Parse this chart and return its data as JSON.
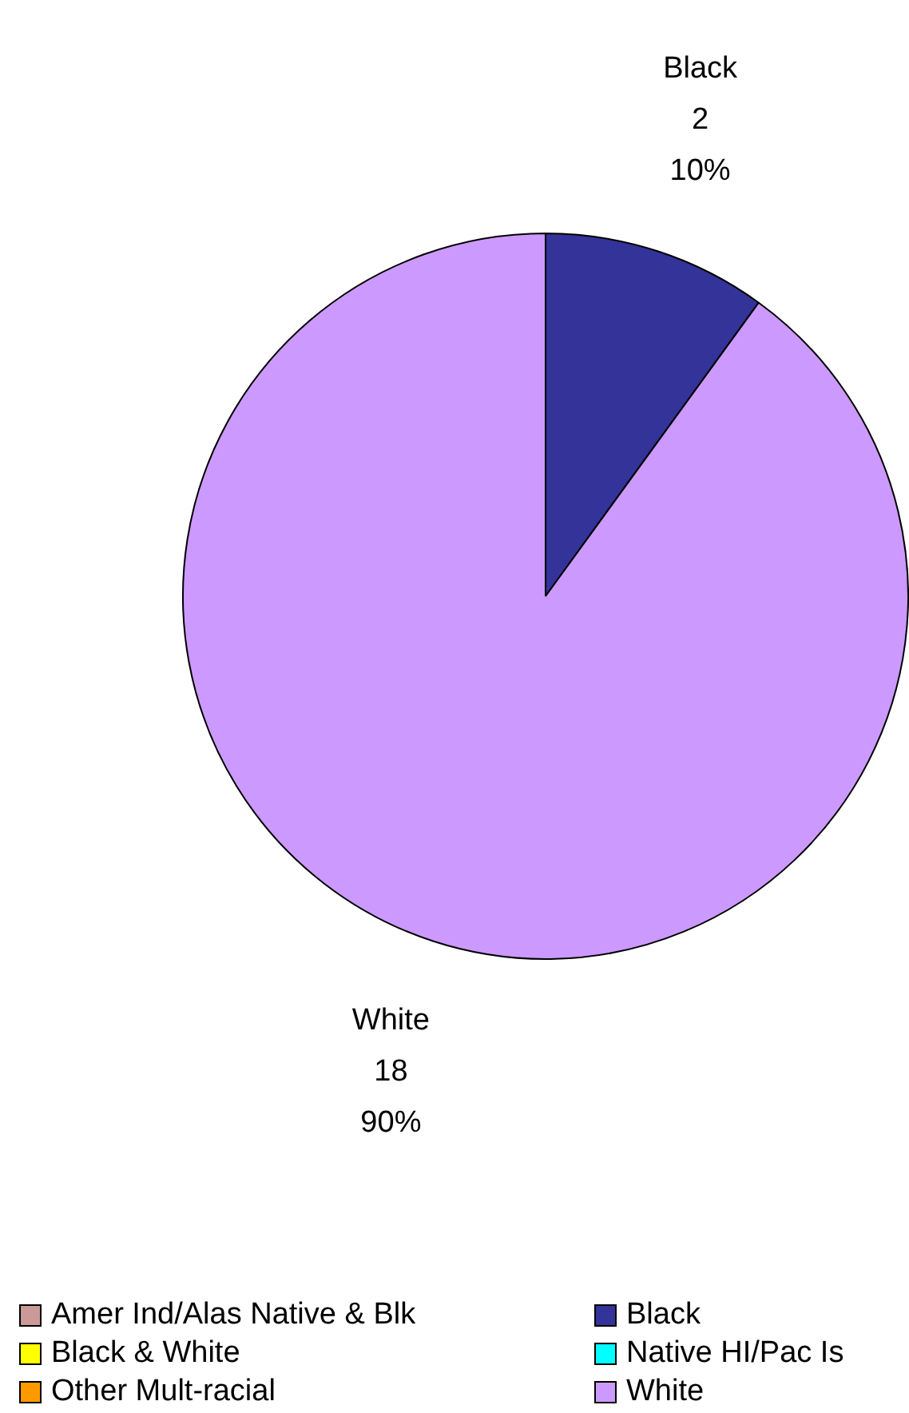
{
  "chart_data": {
    "type": "pie",
    "categories": [
      "Amer Ind/Alas Native & Blk",
      "Black",
      "Black & White",
      "Native HI/Pac Is",
      "Other Mult-racial",
      "White"
    ],
    "values": [
      0,
      2,
      0,
      0,
      0,
      18
    ],
    "colors": [
      "#cc9999",
      "#333399",
      "#ffff00",
      "#00ffff",
      "#ff9900",
      "#cc99ff"
    ],
    "value_labels": [
      null,
      "Black\n2\n10%",
      null,
      null,
      null,
      "White\n18\n90%"
    ],
    "legend": "bottom"
  }
}
